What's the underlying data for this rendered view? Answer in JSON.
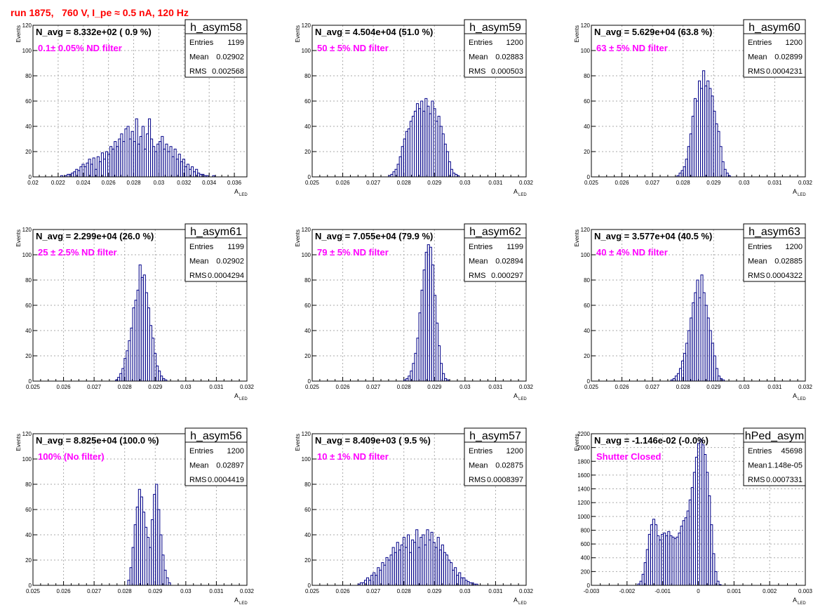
{
  "run_title": "run 1875,   760 V, I_pe ≈ 0.5 nA, 120 Hz",
  "axis_labels": {
    "y": "Events",
    "x_main": "A",
    "x_sub": "LED"
  },
  "stat_labels": {
    "entries": "Entries",
    "mean": "Mean",
    "rms": "RMS"
  },
  "colors": {
    "histogram": "#000088",
    "filter_text": "#ff00ff",
    "title": "#ff0000",
    "grid": "#aaaaaa"
  },
  "chart_data": [
    {
      "type": "histogram",
      "name": "h_asym58",
      "navg": "N_avg = 8.332e+02 ( 0.9 %)",
      "filter": "0.1± 0.05% ND filter",
      "stats": {
        "entries": "1199",
        "mean": "0.02902",
        "rms": "0.002568"
      },
      "xlim": [
        0.02,
        0.037
      ],
      "ylim": [
        0,
        120
      ],
      "xticks": [
        "0.02",
        "0.022",
        "0.024",
        "0.026",
        "0.028",
        "0.03",
        "0.032",
        "0.034",
        "0.036"
      ],
      "xtick_values": [
        0.02,
        0.022,
        0.024,
        0.026,
        0.028,
        0.03,
        0.032,
        0.034,
        0.036
      ],
      "yticks": [
        "0",
        "20",
        "40",
        "60",
        "80",
        "100",
        "120"
      ],
      "ytick_values": [
        0,
        20,
        40,
        60,
        80,
        100,
        120
      ],
      "bin_start": 0.0222,
      "bin_width": 0.00017,
      "counts": [
        1,
        0,
        1,
        2,
        2,
        3,
        4,
        6,
        5,
        8,
        10,
        8,
        11,
        14,
        10,
        15,
        6,
        16,
        12,
        19,
        14,
        20,
        18,
        24,
        22,
        28,
        24,
        30,
        34,
        28,
        38,
        40,
        30,
        36,
        28,
        46,
        26,
        32,
        40,
        22,
        34,
        46,
        30,
        24,
        20,
        26,
        28,
        32,
        22,
        26,
        20,
        24,
        16,
        22,
        14,
        18,
        12,
        14,
        8,
        10,
        6,
        8,
        4,
        6,
        3,
        2,
        2,
        1,
        1,
        0,
        0,
        1
      ]
    },
    {
      "type": "histogram",
      "name": "h_asym59",
      "navg": "N_avg = 4.504e+04 (51.0 %)",
      "filter": "50 ± 5% ND filter",
      "stats": {
        "entries": "1200",
        "mean": "0.02883",
        "rms": "0.000503"
      },
      "xlim": [
        0.025,
        0.032
      ],
      "ylim": [
        0,
        120
      ],
      "xticks": [
        "0.025",
        "0.026",
        "0.027",
        "0.028",
        "0.029",
        "0.03",
        "0.031",
        "0.032"
      ],
      "xtick_values": [
        0.025,
        0.026,
        0.027,
        0.028,
        0.029,
        0.03,
        0.031,
        0.032
      ],
      "yticks": [
        "0",
        "20",
        "40",
        "60",
        "80",
        "100",
        "120"
      ],
      "ytick_values": [
        0,
        20,
        40,
        60,
        80,
        100,
        120
      ],
      "bin_start": 0.0275,
      "bin_width": 7e-05,
      "counts": [
        1,
        2,
        4,
        6,
        10,
        16,
        24,
        30,
        36,
        38,
        44,
        48,
        52,
        58,
        54,
        60,
        52,
        62,
        56,
        50,
        60,
        54,
        44,
        48,
        40,
        34,
        26,
        20,
        12,
        6,
        3,
        2,
        1
      ]
    },
    {
      "type": "histogram",
      "name": "h_asym60",
      "navg": "N_avg = 5.629e+04 (63.8 %)",
      "filter": "63 ± 5% ND filter",
      "stats": {
        "entries": "1200",
        "mean": "0.02899",
        "rms": "0.0004231"
      },
      "xlim": [
        0.025,
        0.032
      ],
      "ylim": [
        0,
        120
      ],
      "xticks": [
        "0.025",
        "0.026",
        "0.027",
        "0.028",
        "0.029",
        "0.03",
        "0.031",
        "0.032"
      ],
      "xtick_values": [
        0.025,
        0.026,
        0.027,
        0.028,
        0.029,
        0.03,
        0.031,
        0.032
      ],
      "yticks": [
        "0",
        "20",
        "40",
        "60",
        "80",
        "100",
        "120"
      ],
      "ytick_values": [
        0,
        20,
        40,
        60,
        80,
        100,
        120
      ],
      "bin_start": 0.0278,
      "bin_width": 7e-05,
      "counts": [
        1,
        3,
        5,
        8,
        14,
        24,
        34,
        48,
        62,
        60,
        76,
        70,
        84,
        72,
        76,
        70,
        64,
        52,
        42,
        36,
        24,
        12,
        6,
        3,
        1
      ]
    },
    {
      "type": "histogram",
      "name": "h_asym61",
      "navg": "N_avg = 2.299e+04 (26.0 %)",
      "filter": "25 ± 2.5% ND filter",
      "stats": {
        "entries": "1199",
        "mean": "0.02902",
        "rms": "0.0004294"
      },
      "xlim": [
        0.025,
        0.032
      ],
      "ylim": [
        0,
        120
      ],
      "xticks": [
        "0.025",
        "0.026",
        "0.027",
        "0.028",
        "0.029",
        "0.03",
        "0.031",
        "0.032"
      ],
      "xtick_values": [
        0.025,
        0.026,
        0.027,
        0.028,
        0.029,
        0.03,
        0.031,
        0.032
      ],
      "yticks": [
        "0",
        "20",
        "40",
        "60",
        "80",
        "100",
        "120"
      ],
      "ytick_values": [
        0,
        20,
        40,
        60,
        80,
        100,
        120
      ],
      "bin_start": 0.0277,
      "bin_width": 7e-05,
      "counts": [
        1,
        3,
        6,
        10,
        18,
        24,
        32,
        42,
        58,
        64,
        72,
        92,
        82,
        84,
        70,
        58,
        44,
        34,
        22,
        12,
        8,
        4,
        2,
        1
      ]
    },
    {
      "type": "histogram",
      "name": "h_asym62",
      "navg": "N_avg = 7.055e+04 (79.9 %)",
      "filter": "79 ± 5% ND filter",
      "stats": {
        "entries": "1199",
        "mean": "0.02894",
        "rms": "0.000297"
      },
      "xlim": [
        0.025,
        0.032
      ],
      "ylim": [
        0,
        120
      ],
      "xticks": [
        "0.025",
        "0.026",
        "0.027",
        "0.028",
        "0.029",
        "0.03",
        "0.031",
        "0.032"
      ],
      "xtick_values": [
        0.025,
        0.026,
        0.027,
        0.028,
        0.029,
        0.03,
        0.031,
        0.032
      ],
      "yticks": [
        "0",
        "20",
        "40",
        "60",
        "80",
        "100",
        "120"
      ],
      "ytick_values": [
        0,
        20,
        40,
        60,
        80,
        100,
        120
      ],
      "bin_start": 0.028,
      "bin_width": 7e-05,
      "counts": [
        1,
        2,
        4,
        8,
        14,
        22,
        34,
        54,
        72,
        88,
        102,
        108,
        106,
        92,
        68,
        46,
        28,
        14,
        6,
        2,
        1
      ]
    },
    {
      "type": "histogram",
      "name": "h_asym63",
      "navg": "N_avg = 3.577e+04 (40.5 %)",
      "filter": "40 ± 4% ND filter",
      "stats": {
        "entries": "1200",
        "mean": "0.02885",
        "rms": "0.0004322"
      },
      "xlim": [
        0.025,
        0.032
      ],
      "ylim": [
        0,
        120
      ],
      "xticks": [
        "0.025",
        "0.026",
        "0.027",
        "0.028",
        "0.029",
        "0.03",
        "0.031",
        "0.032"
      ],
      "xtick_values": [
        0.025,
        0.026,
        0.027,
        0.028,
        0.029,
        0.03,
        0.031,
        0.032
      ],
      "yticks": [
        "0",
        "20",
        "40",
        "60",
        "80",
        "100",
        "120"
      ],
      "ytick_values": [
        0,
        20,
        40,
        60,
        80,
        100,
        120
      ],
      "bin_start": 0.0276,
      "bin_width": 7e-05,
      "counts": [
        1,
        2,
        4,
        6,
        10,
        16,
        22,
        30,
        40,
        50,
        62,
        70,
        80,
        66,
        84,
        70,
        60,
        50,
        40,
        30,
        20,
        10,
        4,
        2,
        1
      ]
    },
    {
      "type": "histogram",
      "name": "h_asym56",
      "navg": "N_avg = 8.825e+04 (100.0 %)",
      "filter": "100% (No filter)",
      "stats": {
        "entries": "1200",
        "mean": "0.02897",
        "rms": "0.0004419"
      },
      "xlim": [
        0.025,
        0.032
      ],
      "ylim": [
        0,
        120
      ],
      "xticks": [
        "0.025",
        "0.026",
        "0.027",
        "0.028",
        "0.029",
        "0.03",
        "0.031",
        "0.032"
      ],
      "xtick_values": [
        0.025,
        0.026,
        0.027,
        0.028,
        0.029,
        0.03,
        0.031,
        0.032
      ],
      "yticks": [
        "0",
        "20",
        "40",
        "60",
        "80",
        "100",
        "120"
      ],
      "ytick_values": [
        0,
        20,
        40,
        60,
        80,
        100,
        120
      ],
      "bin_start": 0.0281,
      "bin_width": 7e-05,
      "counts": [
        4,
        14,
        30,
        48,
        62,
        76,
        70,
        58,
        46,
        38,
        30,
        52,
        72,
        80,
        60,
        40,
        24,
        12,
        6,
        2
      ]
    },
    {
      "type": "histogram",
      "name": "h_asym57",
      "navg": "N_avg = 8.409e+03 ( 9.5 %)",
      "filter": "10 ± 1% ND filter",
      "stats": {
        "entries": "1200",
        "mean": "0.02875",
        "rms": "0.0008397"
      },
      "xlim": [
        0.025,
        0.032
      ],
      "ylim": [
        0,
        120
      ],
      "xticks": [
        "0.025",
        "0.026",
        "0.027",
        "0.028",
        "0.029",
        "0.03",
        "0.031",
        "0.032"
      ],
      "xtick_values": [
        0.025,
        0.026,
        0.027,
        0.028,
        0.029,
        0.03,
        0.031,
        0.032
      ],
      "yticks": [
        "0",
        "20",
        "40",
        "60",
        "80",
        "100",
        "120"
      ],
      "ytick_values": [
        0,
        20,
        40,
        60,
        80,
        100,
        120
      ],
      "bin_start": 0.0265,
      "bin_width": 7e-05,
      "counts": [
        1,
        2,
        2,
        4,
        6,
        4,
        8,
        10,
        8,
        14,
        12,
        18,
        16,
        22,
        20,
        24,
        30,
        26,
        34,
        28,
        32,
        38,
        30,
        40,
        26,
        36,
        34,
        44,
        30,
        38,
        40,
        32,
        44,
        36,
        42,
        34,
        30,
        38,
        28,
        32,
        26,
        24,
        20,
        18,
        12,
        14,
        8,
        10,
        6,
        6,
        4,
        3,
        2,
        2,
        1,
        1
      ]
    },
    {
      "type": "histogram",
      "name": "hPed_asym",
      "navg": "N_avg = -1.146e-02 (-0.0%)",
      "filter": "Shutter Closed",
      "stats": {
        "entries": "45698",
        "mean": "1.148e-05",
        "rms": "0.0007331"
      },
      "xlim": [
        -0.003,
        0.003
      ],
      "ylim": [
        0,
        2200
      ],
      "xticks": [
        "-0.003",
        "-0.002",
        "-0.001",
        "0",
        "0.001",
        "0.002",
        "0.003"
      ],
      "xtick_values": [
        -0.003,
        -0.002,
        -0.001,
        0,
        0.001,
        0.002,
        0.003
      ],
      "yticks": [
        "0",
        "200",
        "400",
        "600",
        "800",
        "1000",
        "1200",
        "1400",
        "1600",
        "1800",
        "2000",
        "2200"
      ],
      "ytick_values": [
        0,
        200,
        400,
        600,
        800,
        1000,
        1200,
        1400,
        1600,
        1800,
        2000,
        2200
      ],
      "bin_start": -0.0017,
      "bin_width": 6e-05,
      "counts": [
        20,
        60,
        160,
        330,
        520,
        740,
        880,
        960,
        880,
        720,
        660,
        740,
        760,
        720,
        780,
        720,
        700,
        680,
        700,
        760,
        860,
        940,
        980,
        1080,
        1240,
        1420,
        1640,
        1860,
        2060,
        2120,
        2040,
        1900,
        1640,
        1300,
        880,
        460,
        200,
        60,
        10
      ]
    }
  ]
}
